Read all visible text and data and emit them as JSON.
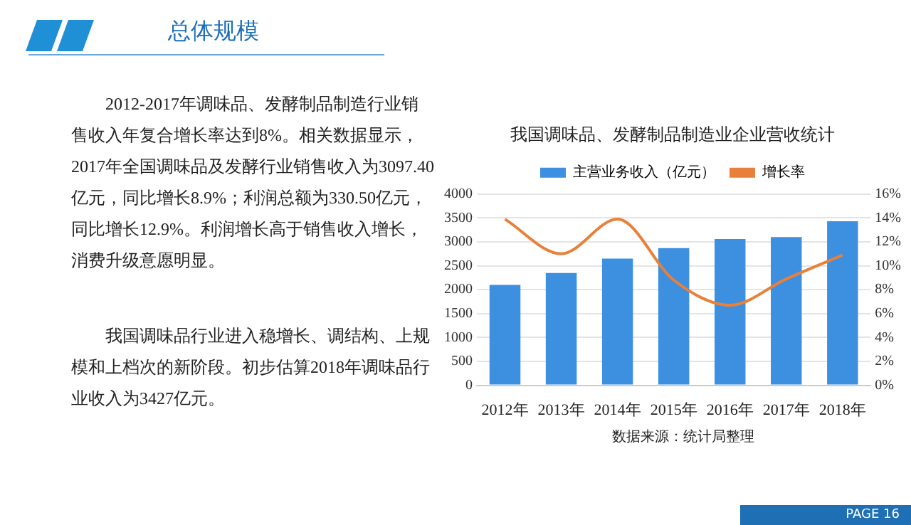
{
  "chart_data": {
    "type": "bar",
    "title": "总体规模",
    "subtitle": "我国调味品、发酵制品制造业企业营收统计",
    "categories": [
      "2012年",
      "2013年",
      "2014年",
      "2015年",
      "2016年",
      "2017年",
      "2018年"
    ],
    "series": [
      {
        "name": "主营业务收入（亿元）",
        "color": "#3d8fe0",
        "values": [
          2100,
          2350,
          2650,
          2870,
          3060,
          3100,
          3430
        ]
      },
      {
        "name": "增长率",
        "type": "line",
        "axis": "y2",
        "color": "#e8803a",
        "values": [
          13.9,
          11.0,
          13.9,
          8.8,
          6.7,
          8.9,
          10.9
        ]
      }
    ],
    "ylim": [
      0,
      4000
    ],
    "yticks": [
      0,
      500,
      1000,
      1500,
      2000,
      2500,
      3000,
      3500,
      4000
    ],
    "y2lim": [
      0,
      16
    ],
    "y2ticks": [
      {
        "value": 0,
        "label": "0%"
      },
      {
        "value": 2,
        "label": "2%"
      },
      {
        "value": 4,
        "label": "4%"
      },
      {
        "value": 6,
        "label": "6%"
      },
      {
        "value": 8,
        "label": "8%"
      },
      {
        "value": 10,
        "label": "10%"
      },
      {
        "value": 12,
        "label": "12%"
      },
      {
        "value": 14,
        "label": "14%"
      },
      {
        "value": 16,
        "label": "16%"
      }
    ],
    "grid": "y",
    "legend": "top",
    "marker": "none",
    "line_style": "solid",
    "annotations": [
      "2012-2017年调味品、发酵制品制造行业销售收入年复合增长率达到8%。相关数据显示，2017年全国调味品及发酵行业销售收入为3097.40亿元，同比增长8.9%；利润总额为330.50亿元，同比增长12.9%。利润增长高于销售收入增长，消费升级意愿明显。",
      "我国调味品行业进入稳增长、调结构、上规模和上档次的新阶段。初步估算2018年调味品行业收入为3427亿元。",
      "数据来源：统计局整理",
      "PAGE 16"
    ]
  }
}
